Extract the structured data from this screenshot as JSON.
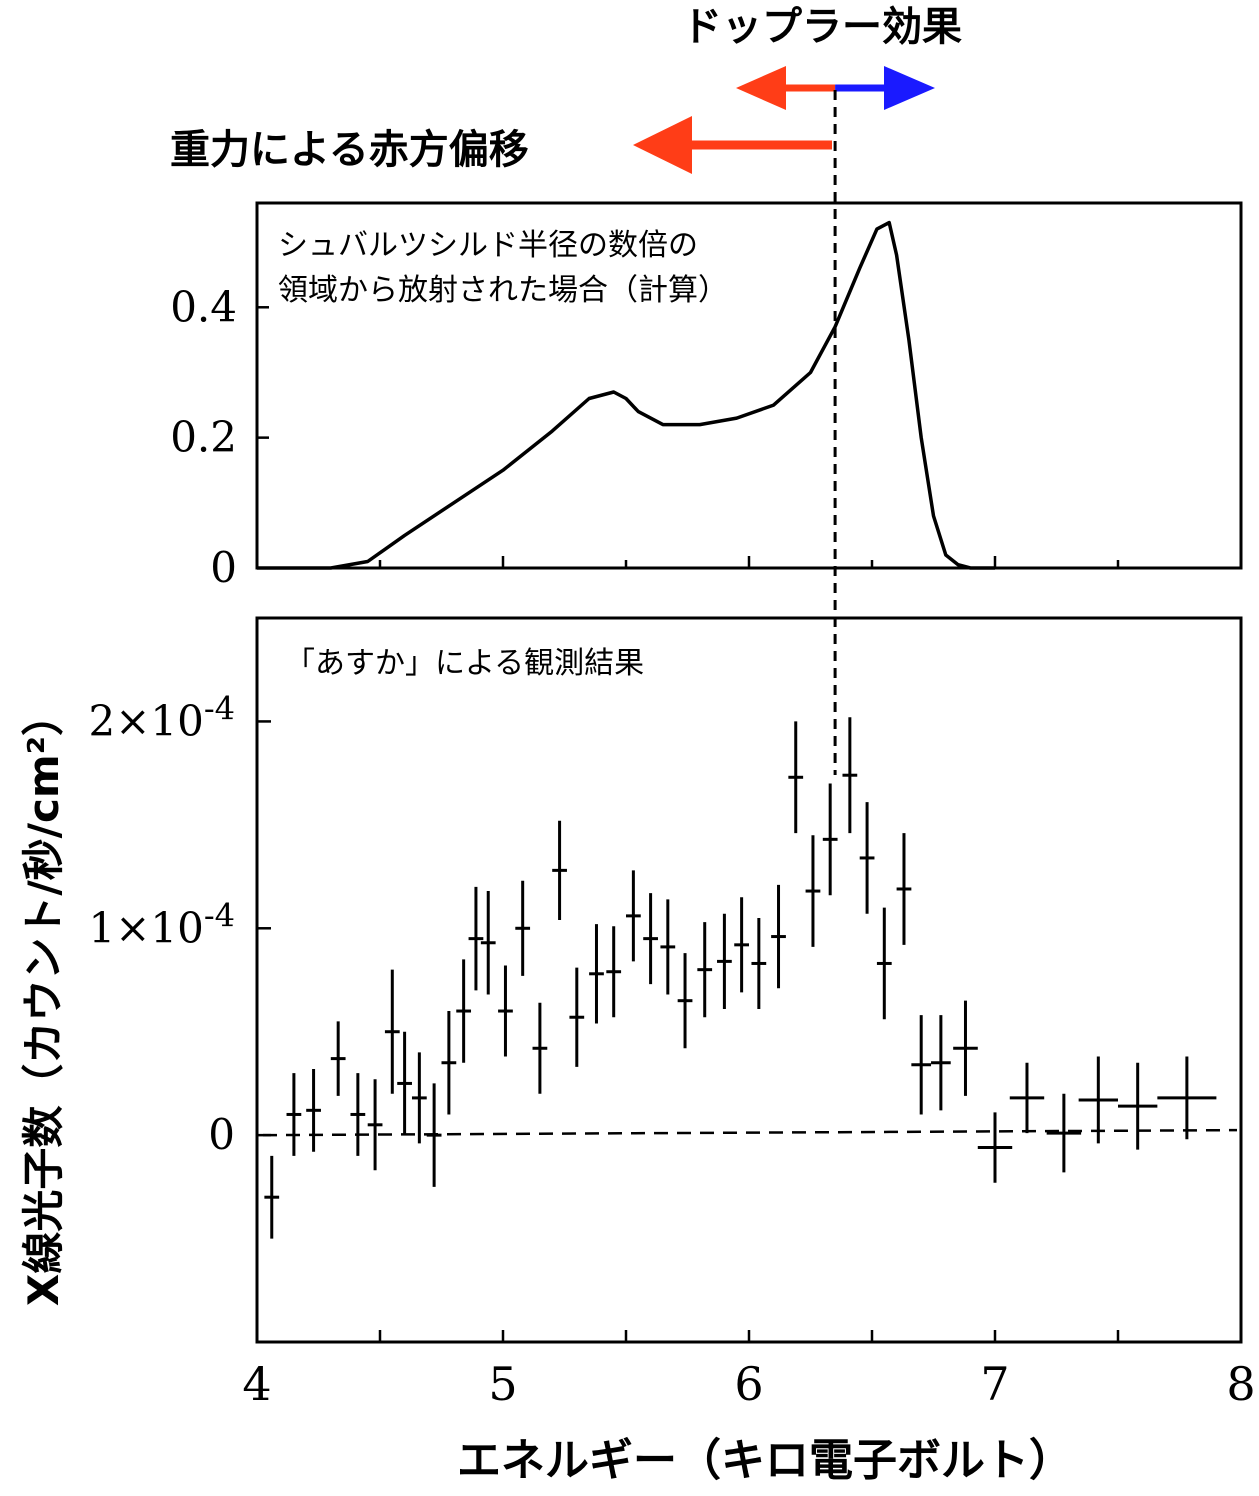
{
  "annotations": {
    "doppler_label": "ドップラー効果",
    "redshift_label": "重力による赤方偏移",
    "colors": {
      "redshift_arrow": "#ff3d17",
      "blueshift_arrow": "#1a1aff"
    }
  },
  "chart_data": [
    {
      "type": "line",
      "panel": "top",
      "annotation": "シュバルツシルド半径の数倍の",
      "annotation_line2": "領域から放射された場合（計算）",
      "xlim": [
        4,
        8
      ],
      "ylim": [
        0,
        0.56
      ],
      "yticks": [
        0,
        0.2,
        0.4
      ],
      "ytick_labels": [
        "0",
        "0.2",
        "0.4"
      ],
      "grid": false,
      "x": [
        4.0,
        4.3,
        4.45,
        4.6,
        4.8,
        5.0,
        5.2,
        5.35,
        5.45,
        5.5,
        5.55,
        5.65,
        5.8,
        5.95,
        6.1,
        6.25,
        6.35,
        6.45,
        6.52,
        6.57,
        6.6,
        6.65,
        6.7,
        6.75,
        6.8,
        6.85,
        6.9,
        7.0
      ],
      "y": [
        0.0,
        0.0,
        0.01,
        0.05,
        0.1,
        0.15,
        0.21,
        0.26,
        0.27,
        0.26,
        0.24,
        0.22,
        0.22,
        0.23,
        0.25,
        0.3,
        0.37,
        0.46,
        0.52,
        0.53,
        0.48,
        0.35,
        0.2,
        0.08,
        0.02,
        0.005,
        0.0,
        0.0
      ]
    },
    {
      "type": "scatter",
      "panel": "bottom",
      "annotation": "「あすか」による観測結果",
      "xlabel": "エネルギー（キロ電子ボルト）",
      "ylabel": "X線光子数（カウント/秒/cm²）",
      "xlim": [
        4,
        8
      ],
      "ylim": [
        -0.0001,
        0.00025
      ],
      "xticks": [
        4,
        5,
        6,
        7,
        8
      ],
      "xtick_labels": [
        "4",
        "5",
        "6",
        "7",
        "8"
      ],
      "yticks": [
        0,
        0.0001,
        0.0002
      ],
      "ytick_labels": [
        {
          "base": "0",
          "exp": ""
        },
        {
          "base": "1×10",
          "exp": "-4"
        },
        {
          "base": "2×10",
          "exp": "-4"
        }
      ],
      "zero_line": true,
      "points": [
        {
          "x": 4.06,
          "xerr": 0.03,
          "y": -3e-05,
          "yerr": 2e-05
        },
        {
          "x": 4.15,
          "xerr": 0.03,
          "y": 1e-05,
          "yerr": 2e-05
        },
        {
          "x": 4.23,
          "xerr": 0.03,
          "y": 1.2e-05,
          "yerr": 2e-05
        },
        {
          "x": 4.33,
          "xerr": 0.03,
          "y": 3.7e-05,
          "yerr": 1.8e-05
        },
        {
          "x": 4.41,
          "xerr": 0.03,
          "y": 1e-05,
          "yerr": 2e-05
        },
        {
          "x": 4.48,
          "xerr": 0.03,
          "y": 5e-06,
          "yerr": 2.2e-05
        },
        {
          "x": 4.55,
          "xerr": 0.03,
          "y": 5e-05,
          "yerr": 3e-05
        },
        {
          "x": 4.6,
          "xerr": 0.03,
          "y": 2.5e-05,
          "yerr": 2.5e-05
        },
        {
          "x": 4.66,
          "xerr": 0.03,
          "y": 1.8e-05,
          "yerr": 2.2e-05
        },
        {
          "x": 4.72,
          "xerr": 0.03,
          "y": 0.0,
          "yerr": 2.5e-05
        },
        {
          "x": 4.78,
          "xerr": 0.03,
          "y": 3.5e-05,
          "yerr": 2.5e-05
        },
        {
          "x": 4.84,
          "xerr": 0.03,
          "y": 6e-05,
          "yerr": 2.5e-05
        },
        {
          "x": 4.89,
          "xerr": 0.03,
          "y": 9.5e-05,
          "yerr": 2.5e-05
        },
        {
          "x": 4.94,
          "xerr": 0.03,
          "y": 9.3e-05,
          "yerr": 2.5e-05
        },
        {
          "x": 5.01,
          "xerr": 0.03,
          "y": 6e-05,
          "yerr": 2.2e-05
        },
        {
          "x": 5.08,
          "xerr": 0.03,
          "y": 0.0001,
          "yerr": 2.3e-05
        },
        {
          "x": 5.15,
          "xerr": 0.03,
          "y": 4.2e-05,
          "yerr": 2.2e-05
        },
        {
          "x": 5.23,
          "xerr": 0.03,
          "y": 0.000128,
          "yerr": 2.4e-05
        },
        {
          "x": 5.3,
          "xerr": 0.03,
          "y": 5.7e-05,
          "yerr": 2.4e-05
        },
        {
          "x": 5.38,
          "xerr": 0.03,
          "y": 7.8e-05,
          "yerr": 2.4e-05
        },
        {
          "x": 5.45,
          "xerr": 0.03,
          "y": 7.9e-05,
          "yerr": 2.2e-05
        },
        {
          "x": 5.53,
          "xerr": 0.03,
          "y": 0.000106,
          "yerr": 2.2e-05
        },
        {
          "x": 5.6,
          "xerr": 0.03,
          "y": 9.5e-05,
          "yerr": 2.2e-05
        },
        {
          "x": 5.67,
          "xerr": 0.03,
          "y": 9.1e-05,
          "yerr": 2.3e-05
        },
        {
          "x": 5.74,
          "xerr": 0.03,
          "y": 6.5e-05,
          "yerr": 2.3e-05
        },
        {
          "x": 5.82,
          "xerr": 0.03,
          "y": 8e-05,
          "yerr": 2.3e-05
        },
        {
          "x": 5.9,
          "xerr": 0.03,
          "y": 8.4e-05,
          "yerr": 2.3e-05
        },
        {
          "x": 5.97,
          "xerr": 0.03,
          "y": 9.2e-05,
          "yerr": 2.3e-05
        },
        {
          "x": 6.04,
          "xerr": 0.03,
          "y": 8.3e-05,
          "yerr": 2.2e-05
        },
        {
          "x": 6.12,
          "xerr": 0.03,
          "y": 9.6e-05,
          "yerr": 2.5e-05
        },
        {
          "x": 6.19,
          "xerr": 0.03,
          "y": 0.000173,
          "yerr": 2.7e-05
        },
        {
          "x": 6.26,
          "xerr": 0.03,
          "y": 0.000118,
          "yerr": 2.7e-05
        },
        {
          "x": 6.33,
          "xerr": 0.03,
          "y": 0.000143,
          "yerr": 2.7e-05
        },
        {
          "x": 6.41,
          "xerr": 0.03,
          "y": 0.000174,
          "yerr": 2.8e-05
        },
        {
          "x": 6.48,
          "xerr": 0.03,
          "y": 0.000134,
          "yerr": 2.7e-05
        },
        {
          "x": 6.55,
          "xerr": 0.03,
          "y": 8.3e-05,
          "yerr": 2.7e-05
        },
        {
          "x": 6.63,
          "xerr": 0.03,
          "y": 0.000119,
          "yerr": 2.7e-05
        },
        {
          "x": 6.7,
          "xerr": 0.04,
          "y": 3.4e-05,
          "yerr": 2.4e-05
        },
        {
          "x": 6.78,
          "xerr": 0.04,
          "y": 3.5e-05,
          "yerr": 2.3e-05
        },
        {
          "x": 6.88,
          "xerr": 0.05,
          "y": 4.2e-05,
          "yerr": 2.3e-05
        },
        {
          "x": 7.0,
          "xerr": 0.07,
          "y": -6e-06,
          "yerr": 1.7e-05
        },
        {
          "x": 7.13,
          "xerr": 0.07,
          "y": 1.8e-05,
          "yerr": 1.7e-05
        },
        {
          "x": 7.28,
          "xerr": 0.07,
          "y": 1e-06,
          "yerr": 1.9e-05
        },
        {
          "x": 7.42,
          "xerr": 0.08,
          "y": 1.7e-05,
          "yerr": 2.1e-05
        },
        {
          "x": 7.58,
          "xerr": 0.08,
          "y": 1.4e-05,
          "yerr": 2.1e-05
        },
        {
          "x": 7.78,
          "xerr": 0.12,
          "y": 1.8e-05,
          "yerr": 2e-05
        }
      ]
    }
  ],
  "reference_line_x": 6.35
}
